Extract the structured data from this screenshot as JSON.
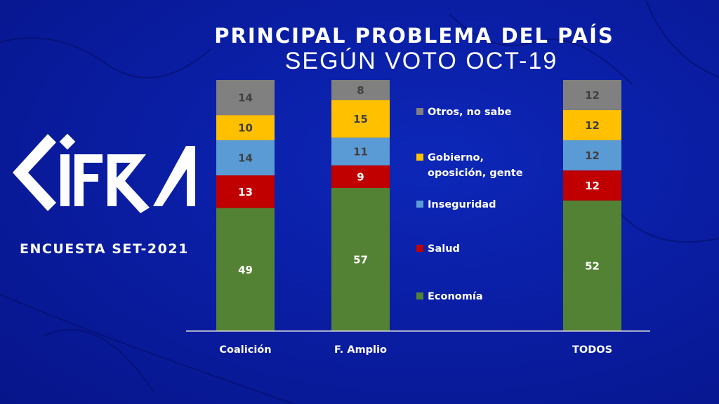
{
  "logo": {
    "text": "CIFRA"
  },
  "subtitle": "ENCUESTA SET-2021",
  "chart_data": {
    "type": "bar",
    "stacked": true,
    "title": "PRINCIPAL PROBLEMA DEL PAÍS",
    "subtitle": "SEGÚN VOTO OCT-19",
    "categories": [
      "Coalición",
      "F. Amplio",
      "TODOS"
    ],
    "series": [
      {
        "name": "Economía",
        "color": "#548235",
        "label_color": "#ffffff",
        "values": [
          49,
          57,
          52
        ]
      },
      {
        "name": "Salud",
        "color": "#c00000",
        "label_color": "#ffffff",
        "values": [
          13,
          9,
          12
        ]
      },
      {
        "name": "Inseguridad",
        "color": "#5b9bd5",
        "label_color": "#404040",
        "values": [
          14,
          11,
          12
        ]
      },
      {
        "name": "Gobierno, oposición, gente",
        "color": "#ffc000",
        "label_color": "#404040",
        "values": [
          10,
          15,
          12
        ]
      },
      {
        "name": "Otros, no sabe",
        "color": "#808080",
        "label_color": "#404040",
        "values": [
          14,
          8,
          12
        ]
      }
    ],
    "ylim": [
      0,
      100
    ],
    "grid": false,
    "legend_placement": "right-of-second-bar"
  }
}
